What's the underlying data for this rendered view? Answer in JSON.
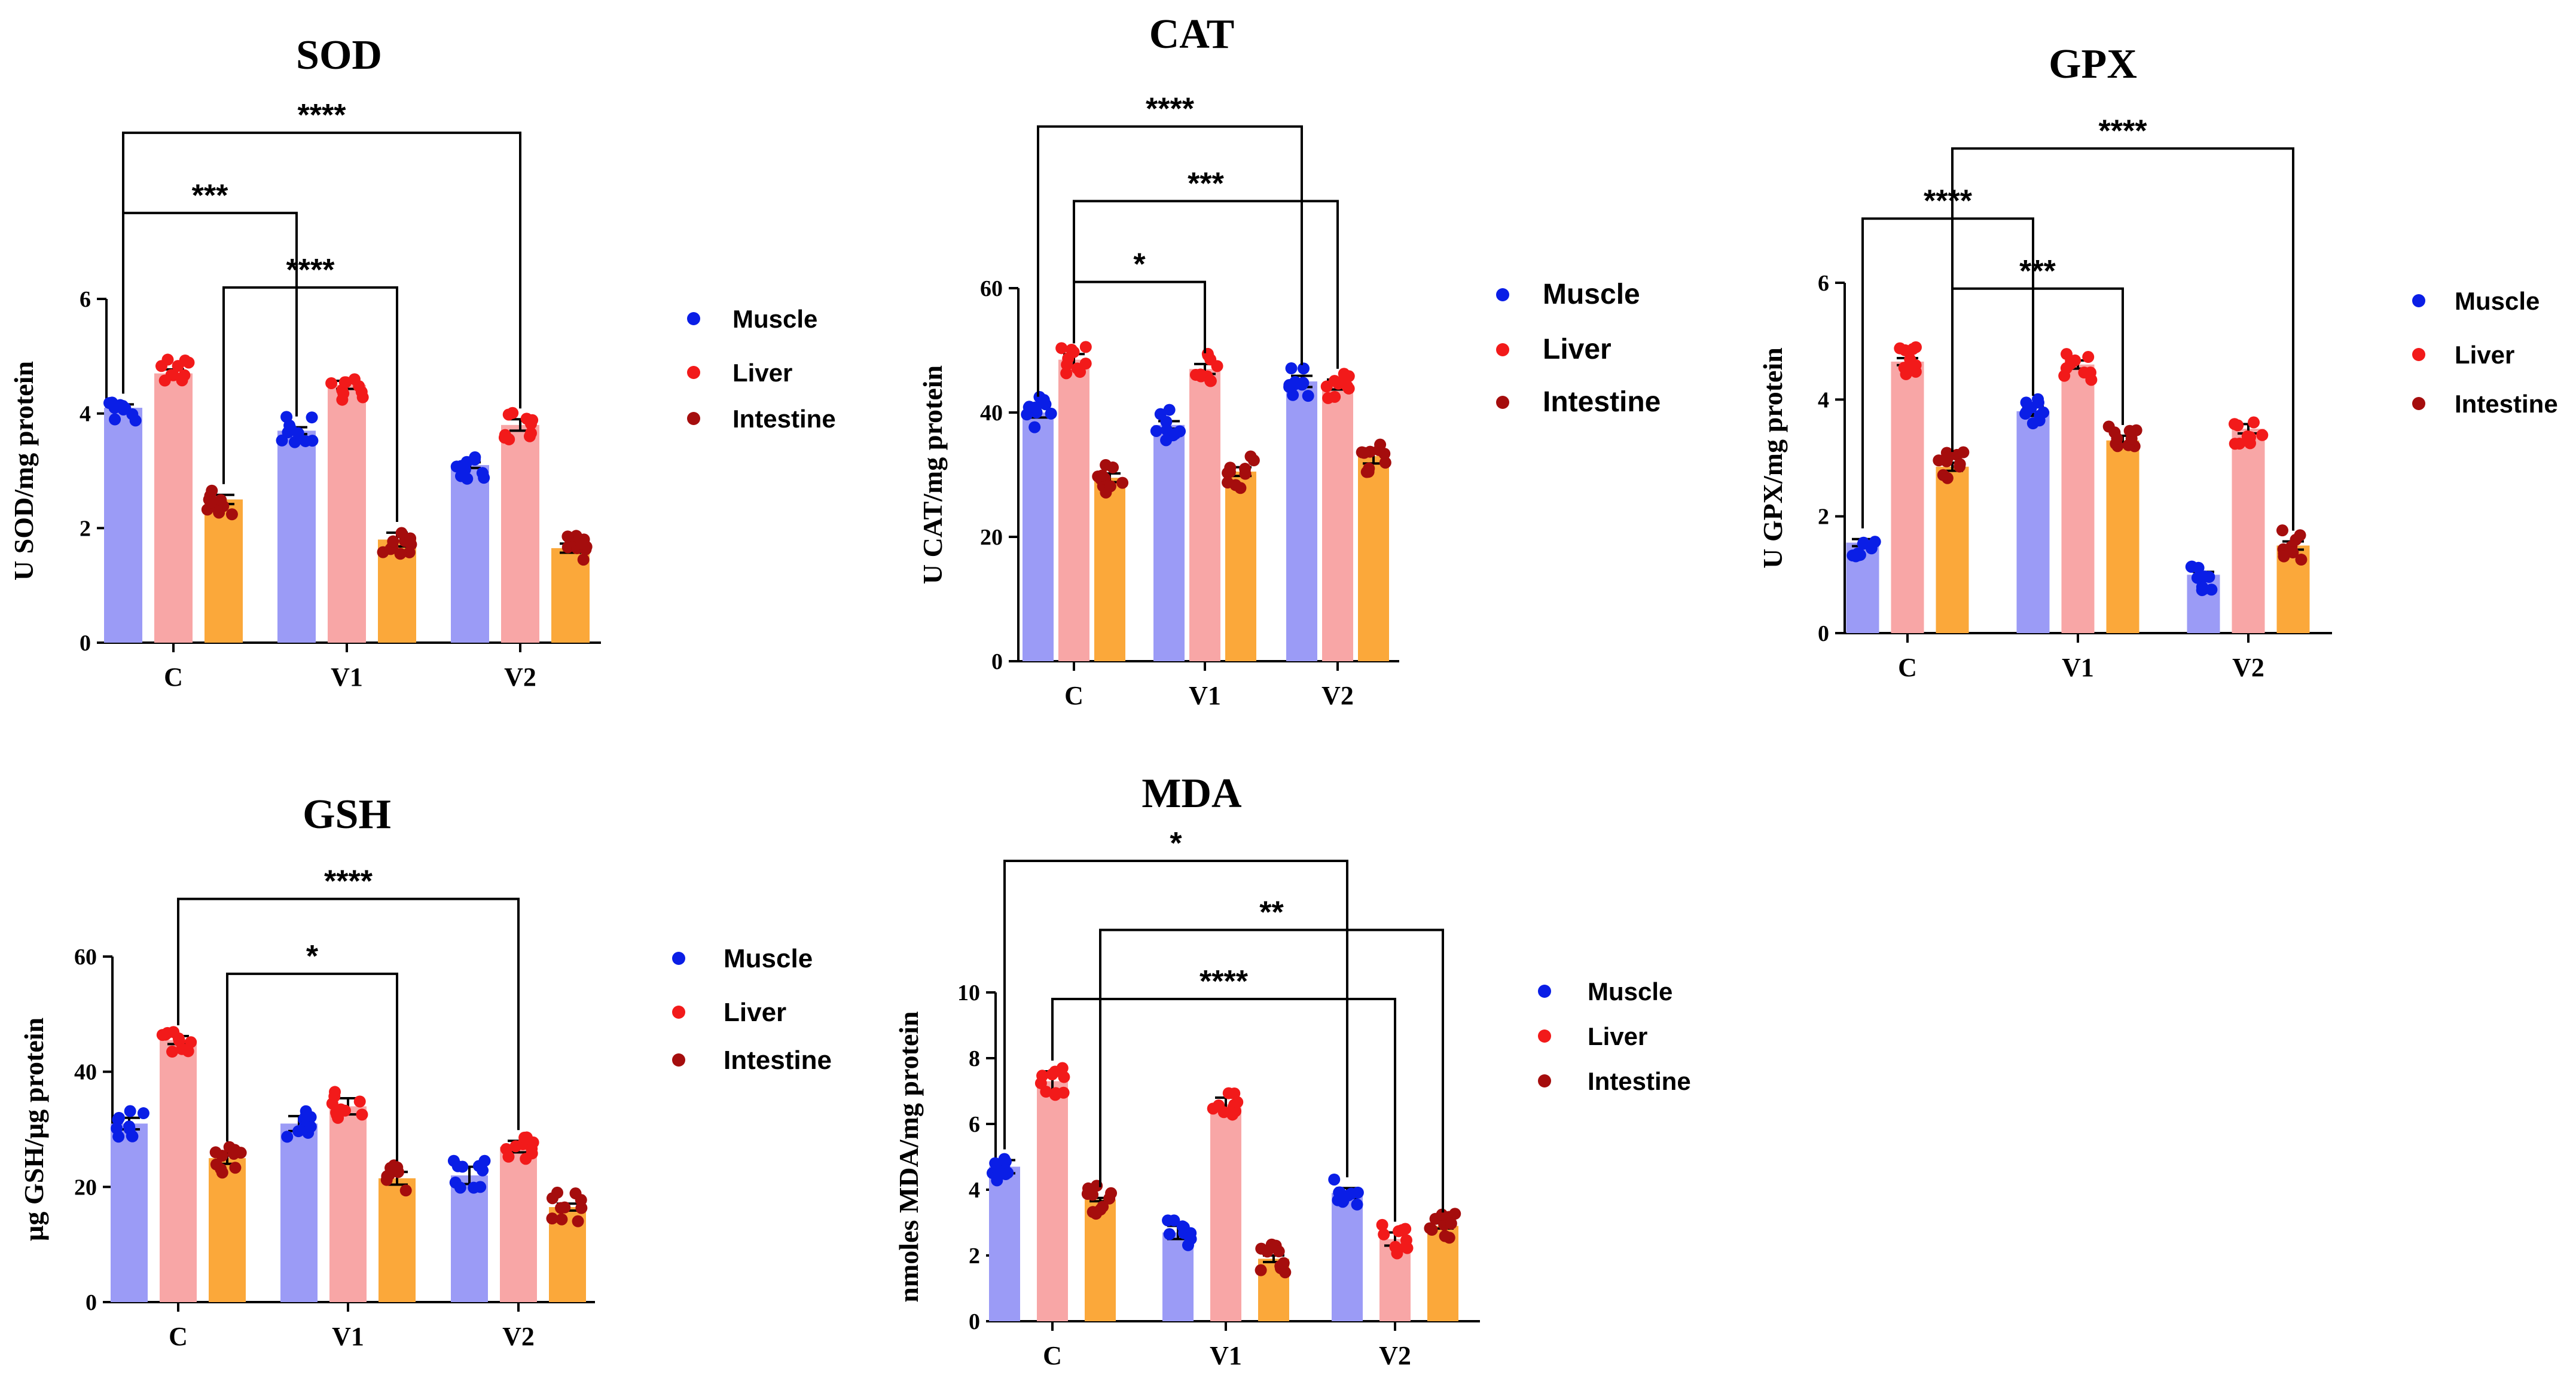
{
  "colors": {
    "muscle_bar": "#9b9bf6",
    "liver_bar": "#f8a6a6",
    "intestine_bar": "#fba83a",
    "muscle_dot": "#0a1ee6",
    "liver_dot": "#f21a1a",
    "intestine_dot": "#a50d0d",
    "axis": "#000000"
  },
  "chart_data": [
    {
      "id": "sod",
      "type": "bar",
      "title": "SOD",
      "ylabel": "U SOD/mg protein",
      "ylim": [
        0,
        6
      ],
      "yticks": [
        0,
        2,
        4,
        6
      ],
      "categories": [
        "C",
        "V1",
        "V2"
      ],
      "series": [
        {
          "name": "Muscle",
          "values": [
            4.1,
            3.7,
            3.1
          ],
          "errors": [
            0.06,
            0.06,
            0.05
          ]
        },
        {
          "name": "Liver",
          "values": [
            4.7,
            4.5,
            3.8
          ],
          "errors": [
            0.07,
            0.07,
            0.1
          ]
        },
        {
          "name": "Intestine",
          "values": [
            2.5,
            1.8,
            1.65
          ],
          "errors": [
            0.08,
            0.12,
            0.08
          ]
        }
      ],
      "legend": [
        "Muscle",
        "Liver",
        "Intestine"
      ],
      "significance": [
        {
          "label": "****",
          "from": [
            0,
            0
          ],
          "to": [
            2,
            1
          ],
          "y": 8.9
        },
        {
          "label": "***",
          "from": [
            0,
            0
          ],
          "to": [
            1,
            0
          ],
          "y": 7.5
        },
        {
          "label": "****",
          "from": [
            0,
            2
          ],
          "to": [
            1,
            2
          ],
          "y": 6.2
        }
      ]
    },
    {
      "id": "cat",
      "type": "bar",
      "title": "CAT",
      "ylabel": "U CAT/mg protein",
      "ylim": [
        0,
        60
      ],
      "yticks": [
        0,
        20,
        40,
        60
      ],
      "categories": [
        "C",
        "V1",
        "V2"
      ],
      "series": [
        {
          "name": "Muscle",
          "values": [
            40,
            38,
            45
          ],
          "errors": [
            0.8,
            0.6,
            0.9
          ]
        },
        {
          "name": "Liver",
          "values": [
            48.5,
            47,
            44.5
          ],
          "errors": [
            0.9,
            0.8,
            0.8
          ]
        },
        {
          "name": "Intestine",
          "values": [
            29.5,
            30.5,
            33
          ],
          "errors": [
            0.7,
            0.7,
            1.2
          ]
        }
      ],
      "legend": [
        "Muscle",
        "Liver",
        "Intestine"
      ],
      "significance": [
        {
          "label": "****",
          "from": [
            0,
            0
          ],
          "to": [
            2,
            0
          ],
          "y": 86
        },
        {
          "label": "***",
          "from": [
            0,
            1
          ],
          "to": [
            2,
            1
          ],
          "y": 74
        },
        {
          "label": "*",
          "from": [
            0,
            1
          ],
          "to": [
            1,
            1
          ],
          "y": 61
        }
      ]
    },
    {
      "id": "gpx",
      "type": "bar",
      "title": "GPX",
      "ylabel": "U GPX/mg protein",
      "ylim": [
        0,
        6
      ],
      "yticks": [
        0,
        2,
        4,
        6
      ],
      "categories": [
        "C",
        "V1",
        "V2"
      ],
      "series": [
        {
          "name": "Muscle",
          "values": [
            1.55,
            3.8,
            1.0
          ],
          "errors": [
            0.06,
            0.08,
            0.05
          ]
        },
        {
          "name": "Liver",
          "values": [
            4.65,
            4.6,
            3.5
          ],
          "errors": [
            0.06,
            0.07,
            0.08
          ]
        },
        {
          "name": "Intestine",
          "values": [
            2.85,
            3.3,
            1.5
          ],
          "errors": [
            0.07,
            0.08,
            0.07
          ]
        }
      ],
      "legend": [
        "Muscle",
        "Liver",
        "Intestine"
      ],
      "significance": [
        {
          "label": "****",
          "from": [
            0,
            2
          ],
          "to": [
            2,
            2
          ],
          "y": 8.3
        },
        {
          "label": "****",
          "from": [
            0,
            0
          ],
          "to": [
            1,
            0
          ],
          "y": 7.1
        },
        {
          "label": "***",
          "from": [
            0,
            2
          ],
          "to": [
            1,
            2
          ],
          "y": 5.9
        }
      ]
    },
    {
      "id": "gsh",
      "type": "bar",
      "title": "GSH",
      "ylabel": "µg GSH/µg protein",
      "ylim": [
        0,
        60
      ],
      "yticks": [
        0,
        20,
        40,
        60
      ],
      "categories": [
        "C",
        "V1",
        "V2"
      ],
      "series": [
        {
          "name": "Muscle",
          "values": [
            31,
            31,
            22
          ],
          "errors": [
            1.0,
            1.3,
            1.5
          ]
        },
        {
          "name": "Liver",
          "values": [
            45.5,
            34,
            27
          ],
          "errors": [
            0.7,
            1.4,
            1.0
          ]
        },
        {
          "name": "Intestine",
          "values": [
            25,
            21.5,
            16.5
          ],
          "errors": [
            1.0,
            1.1,
            0.6
          ]
        }
      ],
      "legend": [
        "Muscle",
        "Liver",
        "Intestine"
      ],
      "significance": [
        {
          "label": "****",
          "from": [
            0,
            1
          ],
          "to": [
            2,
            1
          ],
          "y": 70
        },
        {
          "label": "*",
          "from": [
            0,
            2
          ],
          "to": [
            1,
            2
          ],
          "y": 57
        }
      ]
    },
    {
      "id": "mda",
      "type": "bar",
      "title": "MDA",
      "ylabel": "nmoles MDA/mg protein",
      "ylim": [
        0,
        10
      ],
      "yticks": [
        0,
        2,
        4,
        6,
        8,
        10
      ],
      "categories": [
        "C",
        "V1",
        "V2"
      ],
      "series": [
        {
          "name": "Muscle",
          "values": [
            4.7,
            2.7,
            3.9
          ],
          "errors": [
            0.2,
            0.2,
            0.15
          ]
        },
        {
          "name": "Liver",
          "values": [
            7.3,
            6.6,
            2.5
          ],
          "errors": [
            0.3,
            0.2,
            0.2
          ]
        },
        {
          "name": "Intestine",
          "values": [
            3.7,
            1.9,
            2.9
          ],
          "errors": [
            0.05,
            0.1,
            0.08
          ]
        }
      ],
      "legend": [
        "Muscle",
        "Liver",
        "Intestine"
      ],
      "significance": [
        {
          "label": "*",
          "from": [
            0,
            0
          ],
          "to": [
            2,
            0
          ],
          "y": 14
        },
        {
          "label": "**",
          "from": [
            0,
            2
          ],
          "to": [
            2,
            2
          ],
          "y": 11.9
        },
        {
          "label": "****",
          "from": [
            0,
            1
          ],
          "to": [
            2,
            1
          ],
          "y": 9.8
        }
      ]
    }
  ]
}
